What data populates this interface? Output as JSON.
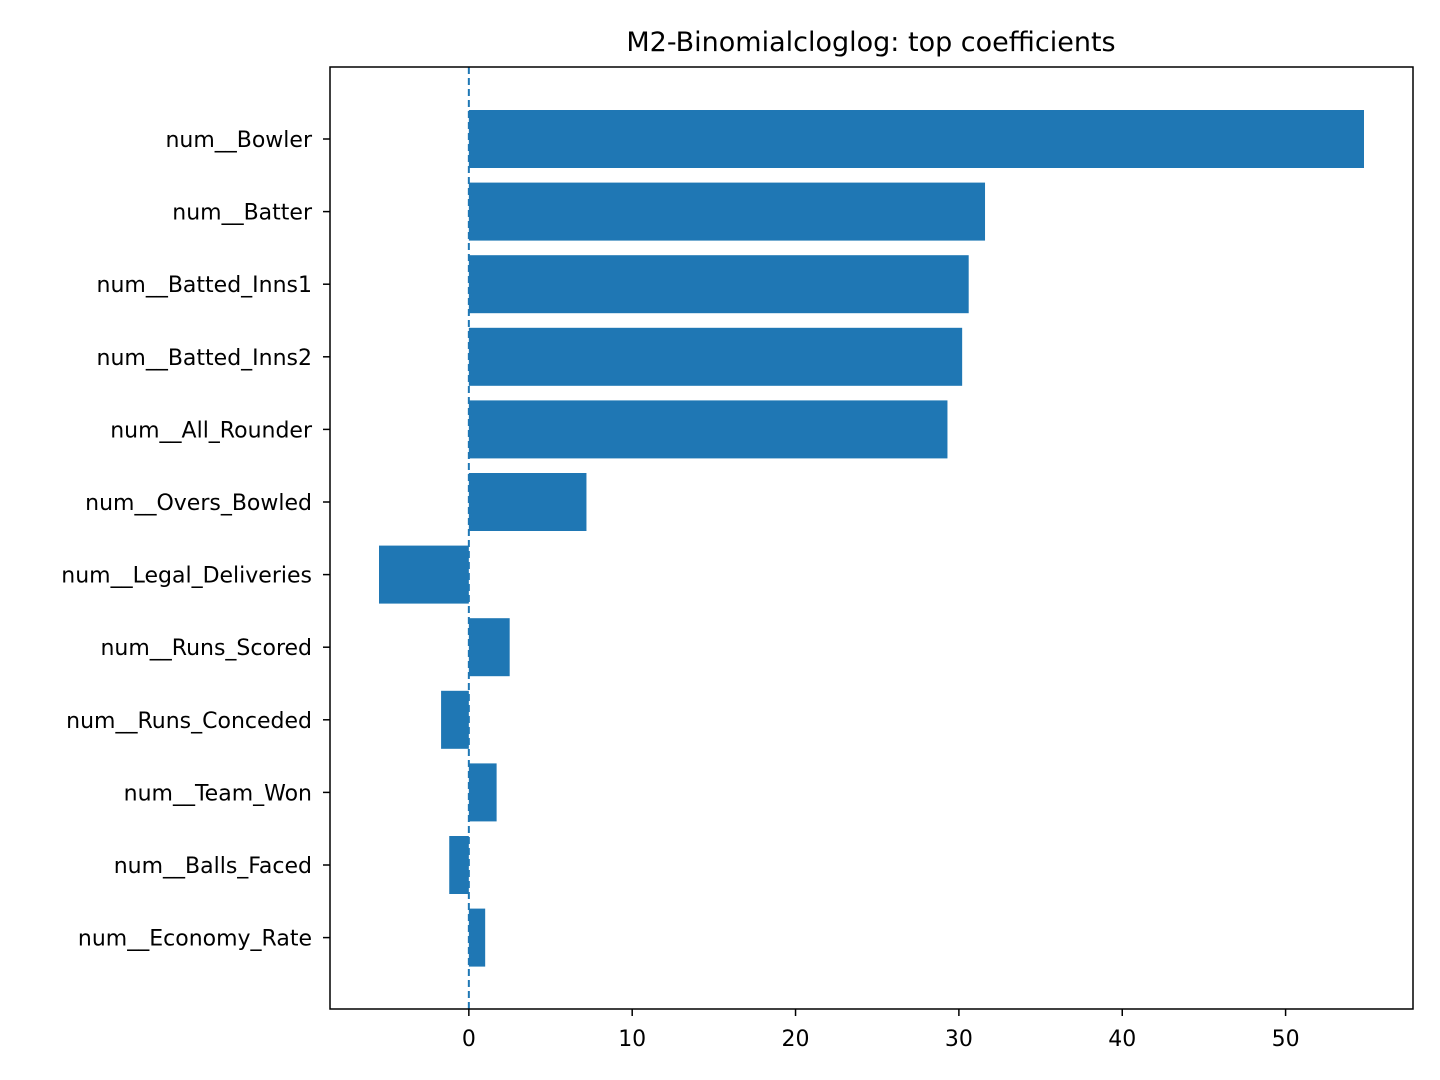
{
  "chart_data": {
    "type": "bar",
    "orientation": "horizontal",
    "title": "M2-Binomialcloglog: top coefficients",
    "xlabel": "",
    "ylabel": "",
    "categories": [
      "num__Bowler",
      "num__Batter",
      "num__Batted_Inns1",
      "num__Batted_Inns2",
      "num__All_Rounder",
      "num__Overs_Bowled",
      "num__Legal_Deliveries",
      "num__Runs_Scored",
      "num__Runs_Conceded",
      "num__Team_Won",
      "num__Balls_Faced",
      "num__Economy_Rate"
    ],
    "values": [
      54.8,
      31.6,
      30.6,
      30.2,
      29.3,
      7.2,
      -5.5,
      2.5,
      -1.7,
      1.7,
      -1.2,
      1.0
    ],
    "xlim": [
      -8.5,
      57.8
    ],
    "xticks": [
      0,
      10,
      20,
      30,
      40,
      50
    ],
    "reference_line": 0,
    "bar_color": "#1f77b4",
    "reference_line_color": "#1f77b4",
    "grid": false,
    "legend": "none"
  }
}
